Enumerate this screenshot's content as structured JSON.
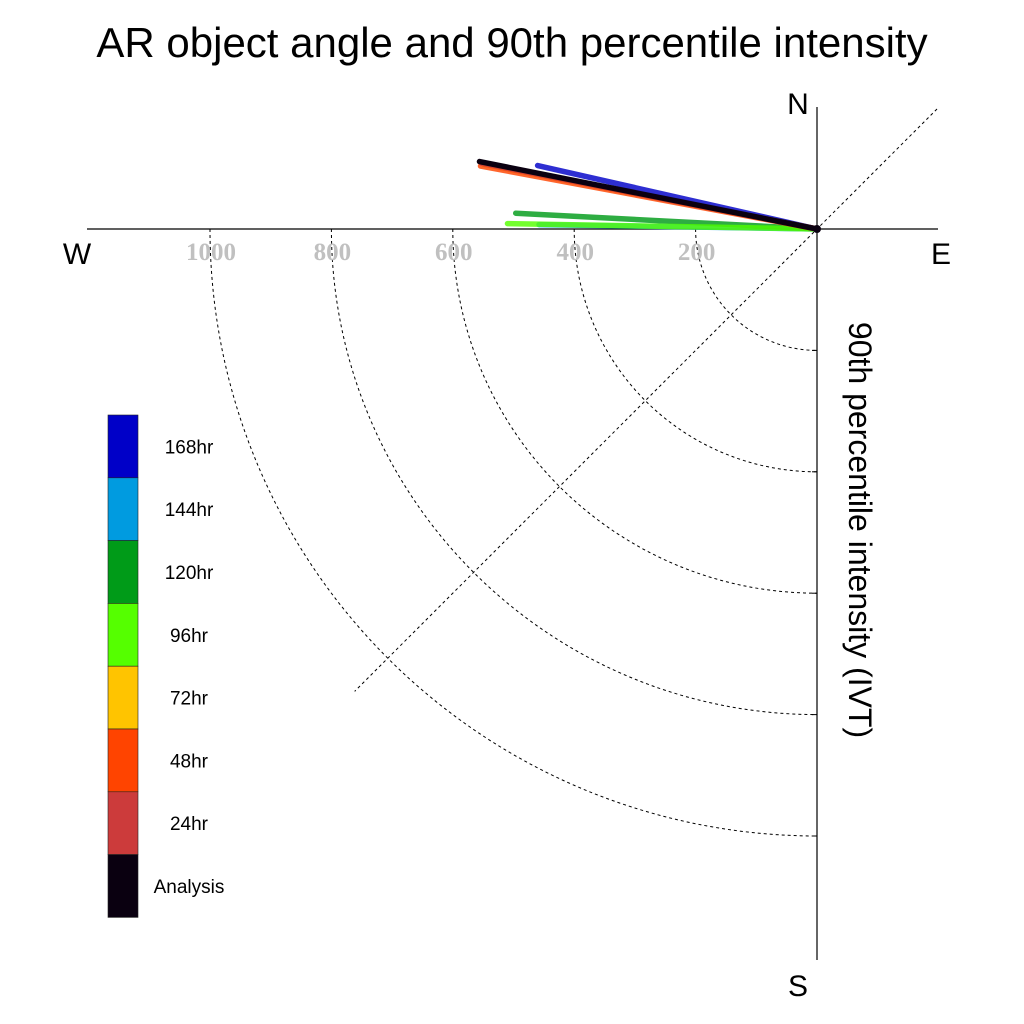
{
  "chart_data": {
    "type": "polar-vector",
    "title": "AR object angle and 90th percentile intensity",
    "ylabel": "90th percentile intensity (IVT)",
    "compass": {
      "north": "N",
      "south": "S",
      "east": "E",
      "west": "W"
    },
    "radial_ticks": [
      200,
      400,
      600,
      800,
      1000
    ],
    "radial_tick_labels": [
      "200",
      "400",
      "600",
      "800",
      "1000"
    ],
    "radial_max": 1200,
    "angle_convention": "degrees counter-clockwise from East",
    "series": [
      {
        "name": "Analysis",
        "color": "#0a0010",
        "angle_deg": 168.7,
        "intensity": 567
      },
      {
        "name": "24hr",
        "color": "#cc3b3b",
        "angle_deg": 168.9,
        "intensity": 563
      },
      {
        "name": "48hr",
        "color": "#ff4400",
        "angle_deg": 169.4,
        "intensity": 564
      },
      {
        "name": "72hr",
        "color": "#ffc400",
        "angle_deg": 169.0,
        "intensity": 560
      },
      {
        "name": "96hr",
        "color": "#55ff00",
        "angle_deg": 179.0,
        "intensity": 510
      },
      {
        "name": "120hr",
        "color": "#009b18",
        "angle_deg": 177.0,
        "intensity": 497
      },
      {
        "name": "144hr",
        "color": "#009be0",
        "angle_deg": 179.1,
        "intensity": 458
      },
      {
        "name": "168hr",
        "color": "#0000c8",
        "angle_deg": 167.2,
        "intensity": 472
      }
    ],
    "legend": {
      "placement": "left",
      "entries": [
        "168hr",
        "144hr",
        "120hr",
        "96hr",
        "72hr",
        "48hr",
        "24hr",
        "Analysis"
      ],
      "colors": [
        "#0000c8",
        "#009be0",
        "#009b18",
        "#55ff00",
        "#ffc400",
        "#ff4400",
        "#cc3b3b",
        "#0a0010"
      ]
    }
  }
}
